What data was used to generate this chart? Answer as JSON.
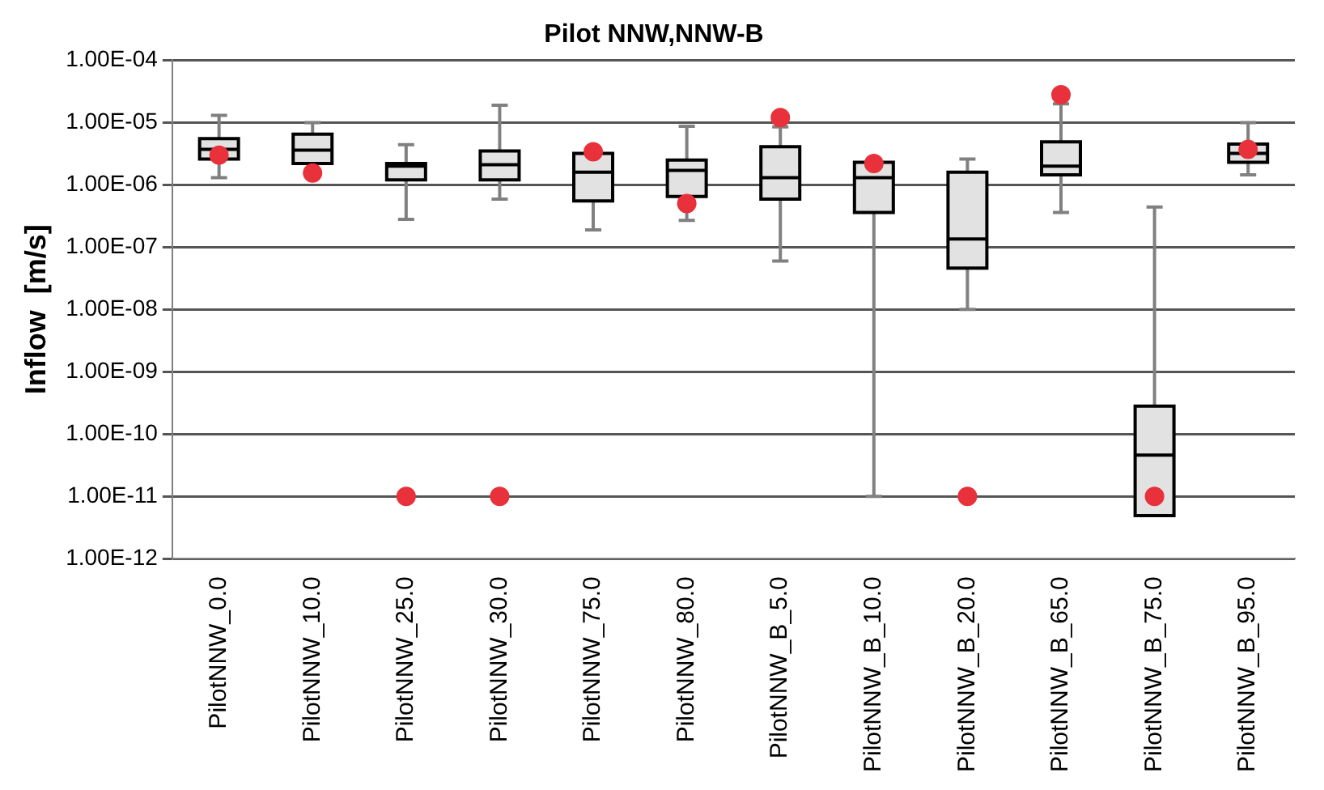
{
  "chart_data": {
    "type": "box",
    "title": "Pilot NNW,NNW-B",
    "ylabel": "Inflow  [m/s]",
    "categories": [
      "PilotNNW_0.0",
      "PilotNNW_10.0",
      "PilotNNW_25.0",
      "PilotNNW_30.0",
      "PilotNNW_75.0",
      "PilotNNW_80.0",
      "PilotNNW_B_5.0",
      "PilotNNW_B_10.0",
      "PilotNNW_B_20.0",
      "PilotNNW_B_65.0",
      "PilotNNW_B_75.0",
      "PilotNNW_B_95.0"
    ],
    "boxes": [
      {
        "low": 1.3e-06,
        "q1": 2.6e-06,
        "median": 3.7e-06,
        "q3": 5.5e-06,
        "high": 1.3e-05
      },
      {
        "low": 2.2e-06,
        "q1": 2.2e-06,
        "median": 3.6e-06,
        "q3": 6.5e-06,
        "high": 1e-05
      },
      {
        "low": 2.8e-07,
        "q1": 1.2e-06,
        "median": 2e-06,
        "q3": 2.2e-06,
        "high": 4.4e-06
      },
      {
        "low": 5.9e-07,
        "q1": 1.2e-06,
        "median": 2.1e-06,
        "q3": 3.5e-06,
        "high": 1.9e-05
      },
      {
        "low": 1.9e-07,
        "q1": 5.5e-07,
        "median": 1.6e-06,
        "q3": 3.2e-06,
        "high": 3.2e-06
      },
      {
        "low": 2.7e-07,
        "q1": 6.5e-07,
        "median": 1.7e-06,
        "q3": 2.5e-06,
        "high": 8.7e-06
      },
      {
        "low": 6e-08,
        "q1": 5.9e-07,
        "median": 1.3e-06,
        "q3": 4.1e-06,
        "high": 8.5e-06
      },
      {
        "low": 1e-11,
        "q1": 3.6e-07,
        "median": 1.3e-06,
        "q3": 2.3e-06,
        "high": 2.3e-06
      },
      {
        "low": 1e-08,
        "q1": 4.6e-08,
        "median": 1.35e-07,
        "q3": 1.6e-06,
        "high": 2.6e-06
      },
      {
        "low": 3.6e-07,
        "q1": 1.45e-06,
        "median": 2e-06,
        "q3": 4.9e-06,
        "high": 2e-05
      },
      {
        "low": 4.9e-12,
        "q1": 4.9e-12,
        "median": 4.6e-11,
        "q3": 2.8e-10,
        "high": 4.4e-07
      },
      {
        "low": 1.45e-06,
        "q1": 2.3e-06,
        "median": 3.2e-06,
        "q3": 4.5e-06,
        "high": 1e-05
      }
    ],
    "series": [
      {
        "type": "scatter",
        "color": "#e8313a",
        "x": [
          "PilotNNW_0.0",
          "PilotNNW_10.0",
          "PilotNNW_25.0",
          "PilotNNW_30.0",
          "PilotNNW_75.0",
          "PilotNNW_80.0",
          "PilotNNW_B_5.0",
          "PilotNNW_B_10.0",
          "PilotNNW_B_20.0",
          "PilotNNW_B_65.0",
          "PilotNNW_B_75.0",
          "PilotNNW_B_95.0"
        ],
        "values": [
          3e-06,
          1.55e-06,
          1e-11,
          1e-11,
          3.4e-06,
          5e-07,
          1.2e-05,
          2.2e-06,
          1e-11,
          2.8e-05,
          1e-11,
          3.7e-06
        ]
      }
    ],
    "log": "y",
    "ylim": [
      1e-12,
      0.0001
    ],
    "yticks": [
      {
        "value": 1e-12,
        "label": "1.00E-12"
      },
      {
        "value": 1e-11,
        "label": "1.00E-11"
      },
      {
        "value": 1e-10,
        "label": "1.00E-10"
      },
      {
        "value": 1e-09,
        "label": "1.00E-09"
      },
      {
        "value": 1e-08,
        "label": "1.00E-08"
      },
      {
        "value": 1e-07,
        "label": "1.00E-07"
      },
      {
        "value": 1e-06,
        "label": "1.00E-06"
      },
      {
        "value": 1e-05,
        "label": "1.00E-05"
      },
      {
        "value": 0.0001,
        "label": "1.00E-04"
      }
    ],
    "grid": "y",
    "legend": false,
    "marker": "circle"
  }
}
